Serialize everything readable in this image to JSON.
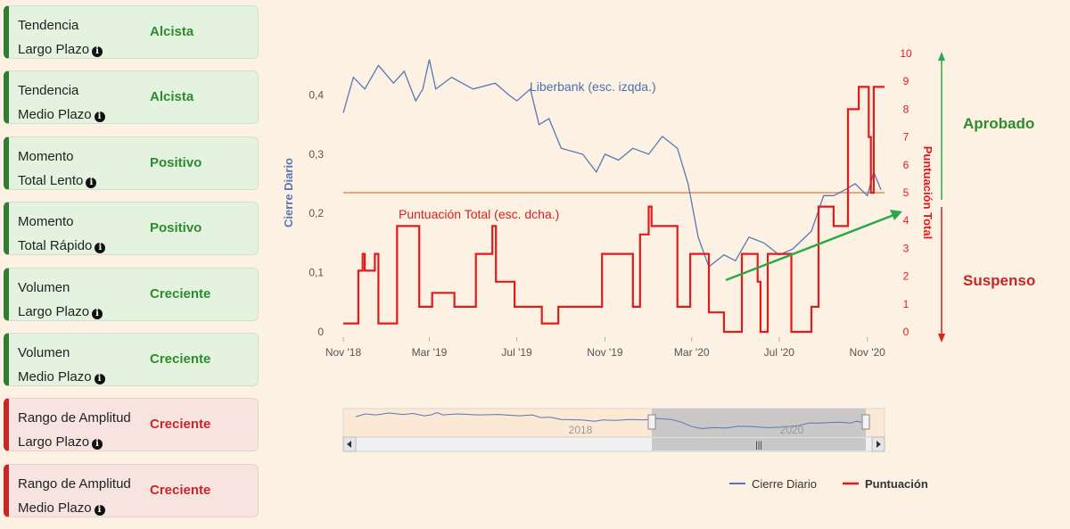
{
  "cards": [
    {
      "line1": "Tendencia",
      "line2": "Largo Plazo",
      "value": "Alcista",
      "status": "good"
    },
    {
      "line1": "Tendencia",
      "line2": "Medio Plazo",
      "value": "Alcista",
      "status": "good"
    },
    {
      "line1": "Momento",
      "line2": "Total Lento",
      "value": "Positivo",
      "status": "good"
    },
    {
      "line1": "Momento",
      "line2": "Total Rápido",
      "value": "Positivo",
      "status": "good"
    },
    {
      "line1": "Volumen",
      "line2": "Largo Plazo",
      "value": "Creciente",
      "status": "good"
    },
    {
      "line1": "Volumen",
      "line2": "Medio Plazo",
      "value": "Creciente",
      "status": "good"
    },
    {
      "line1": "Rango de Amplitud",
      "line2": "Largo Plazo",
      "value": "Creciente",
      "status": "bad"
    },
    {
      "line1": "Rango de Amplitud",
      "line2": "Medio Plazo",
      "value": "Creciente",
      "status": "bad"
    }
  ],
  "side": {
    "approved": "Aprobado",
    "failed": "Suspenso"
  },
  "colors": {
    "price": "#5578b8",
    "score": "#e01b1b",
    "threshold": "#e8a67a",
    "arrow": "#2aa84a",
    "good": "#2e8b2e",
    "bad": "#c62828"
  },
  "chart_data": {
    "type": "line",
    "ylabel_left": "Cierre Diario",
    "ylabel_right": "Puntuación Total",
    "annotation_price": "Liberbank (esc. izqda.)",
    "annotation_score": "Puntuación Total (esc. dcha.)",
    "xticks": [
      "Nov '18",
      "Mar '19",
      "Jul '19",
      "Nov '19",
      "Mar '20",
      "Jul '20",
      "Nov '20"
    ],
    "yticks_left": [
      "0",
      "0,1",
      "0,2",
      "0,3",
      "0,4"
    ],
    "yticks_right": [
      "0",
      "1",
      "2",
      "3",
      "4",
      "5",
      "6",
      "7",
      "8",
      "9",
      "10"
    ],
    "left_range": [
      0,
      0.47
    ],
    "right_range": [
      0,
      10
    ],
    "threshold": 5,
    "navigator_labels": [
      "2018",
      "2020"
    ],
    "legend": [
      "Cierre Diario",
      "Puntuación"
    ],
    "series": [
      {
        "name": "Cierre Diario",
        "axis": "left",
        "points": [
          [
            "2018-11-01",
            0.37
          ],
          [
            "2018-11-15",
            0.43
          ],
          [
            "2018-12-01",
            0.41
          ],
          [
            "2018-12-20",
            0.45
          ],
          [
            "2019-01-10",
            0.42
          ],
          [
            "2019-01-25",
            0.44
          ],
          [
            "2019-02-10",
            0.39
          ],
          [
            "2019-02-20",
            0.41
          ],
          [
            "2019-03-01",
            0.46
          ],
          [
            "2019-03-10",
            0.41
          ],
          [
            "2019-04-01",
            0.43
          ],
          [
            "2019-05-01",
            0.41
          ],
          [
            "2019-06-01",
            0.42
          ],
          [
            "2019-06-20",
            0.4
          ],
          [
            "2019-07-01",
            0.39
          ],
          [
            "2019-07-20",
            0.41
          ],
          [
            "2019-08-01",
            0.35
          ],
          [
            "2019-08-15",
            0.36
          ],
          [
            "2019-09-01",
            0.31
          ],
          [
            "2019-10-01",
            0.3
          ],
          [
            "2019-10-20",
            0.27
          ],
          [
            "2019-11-01",
            0.3
          ],
          [
            "2019-11-20",
            0.29
          ],
          [
            "2019-12-10",
            0.31
          ],
          [
            "2020-01-01",
            0.3
          ],
          [
            "2020-01-20",
            0.33
          ],
          [
            "2020-02-10",
            0.31
          ],
          [
            "2020-02-25",
            0.25
          ],
          [
            "2020-03-10",
            0.16
          ],
          [
            "2020-03-25",
            0.11
          ],
          [
            "2020-04-15",
            0.13
          ],
          [
            "2020-05-01",
            0.12
          ],
          [
            "2020-05-20",
            0.16
          ],
          [
            "2020-06-10",
            0.15
          ],
          [
            "2020-07-01",
            0.13
          ],
          [
            "2020-07-20",
            0.14
          ],
          [
            "2020-08-15",
            0.17
          ],
          [
            "2020-09-01",
            0.23
          ],
          [
            "2020-09-15",
            0.23
          ],
          [
            "2020-10-01",
            0.24
          ],
          [
            "2020-10-15",
            0.25
          ],
          [
            "2020-11-01",
            0.23
          ],
          [
            "2020-11-10",
            0.27
          ],
          [
            "2020-11-20",
            0.24
          ]
        ]
      },
      {
        "name": "Puntuación",
        "axis": "right",
        "points": [
          [
            "2018-11-01",
            0.3
          ],
          [
            "2018-11-20",
            0.3
          ],
          [
            "2018-11-22",
            2.2
          ],
          [
            "2018-11-28",
            2.8
          ],
          [
            "2018-12-01",
            2.2
          ],
          [
            "2018-12-15",
            2.8
          ],
          [
            "2018-12-20",
            0.3
          ],
          [
            "2019-01-10",
            0.3
          ],
          [
            "2019-01-15",
            3.8
          ],
          [
            "2019-02-10",
            3.8
          ],
          [
            "2019-02-15",
            0.9
          ],
          [
            "2019-03-01",
            0.9
          ],
          [
            "2019-03-05",
            1.4
          ],
          [
            "2019-04-01",
            1.4
          ],
          [
            "2019-04-05",
            0.9
          ],
          [
            "2019-05-01",
            0.9
          ],
          [
            "2019-05-05",
            2.8
          ],
          [
            "2019-05-25",
            2.8
          ],
          [
            "2019-05-28",
            3.8
          ],
          [
            "2019-06-02",
            1.8
          ],
          [
            "2019-06-25",
            1.8
          ],
          [
            "2019-06-28",
            0.9
          ],
          [
            "2019-08-01",
            0.9
          ],
          [
            "2019-08-05",
            0.3
          ],
          [
            "2019-08-25",
            0.3
          ],
          [
            "2019-08-28",
            0.9
          ],
          [
            "2019-10-25",
            0.9
          ],
          [
            "2019-10-28",
            2.8
          ],
          [
            "2019-12-05",
            2.8
          ],
          [
            "2019-12-10",
            0.9
          ],
          [
            "2019-12-20",
            3.5
          ],
          [
            "2020-01-01",
            4.5
          ],
          [
            "2020-01-05",
            3.8
          ],
          [
            "2020-02-05",
            3.8
          ],
          [
            "2020-02-10",
            0.9
          ],
          [
            "2020-02-25",
            0.9
          ],
          [
            "2020-02-28",
            2.8
          ],
          [
            "2020-03-20",
            2.8
          ],
          [
            "2020-03-25",
            0.7
          ],
          [
            "2020-04-10",
            0.7
          ],
          [
            "2020-04-15",
            0.0
          ],
          [
            "2020-05-05",
            0.0
          ],
          [
            "2020-05-10",
            2.8
          ],
          [
            "2020-05-25",
            2.8
          ],
          [
            "2020-06-01",
            1.8
          ],
          [
            "2020-06-05",
            0.0
          ],
          [
            "2020-06-15",
            2.8
          ],
          [
            "2020-07-15",
            2.8
          ],
          [
            "2020-07-18",
            0.0
          ],
          [
            "2020-08-10",
            0.0
          ],
          [
            "2020-08-15",
            0.9
          ],
          [
            "2020-08-25",
            4.5
          ],
          [
            "2020-09-10",
            4.5
          ],
          [
            "2020-09-15",
            3.8
          ],
          [
            "2020-10-01",
            3.8
          ],
          [
            "2020-10-05",
            8.0
          ],
          [
            "2020-10-15",
            8.0
          ],
          [
            "2020-10-20",
            8.8
          ],
          [
            "2020-10-30",
            8.8
          ],
          [
            "2020-11-03",
            7.0
          ],
          [
            "2020-11-06",
            5.0
          ],
          [
            "2020-11-10",
            8.8
          ],
          [
            "2020-11-25",
            8.8
          ]
        ]
      }
    ]
  }
}
